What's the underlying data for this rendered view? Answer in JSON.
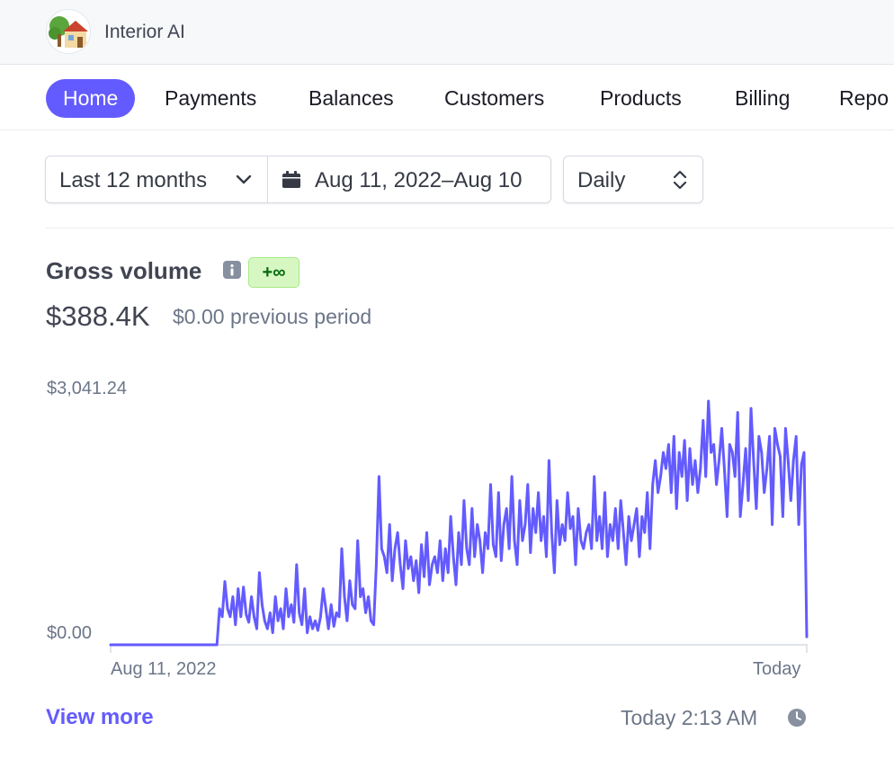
{
  "header": {
    "account_name": "Interior AI",
    "logo_icon": "house-with-garden-icon"
  },
  "nav": {
    "tabs": [
      {
        "label": "Home",
        "active": true
      },
      {
        "label": "Payments"
      },
      {
        "label": "Balances"
      },
      {
        "label": "Customers"
      },
      {
        "label": "Products"
      },
      {
        "label": "Billing"
      },
      {
        "label": "Repo"
      }
    ]
  },
  "filters": {
    "range_label": "Last 12 months",
    "date_range": "Aug 11, 2022–Aug 10",
    "interval": "Daily"
  },
  "metric": {
    "title": "Gross volume",
    "change_badge": "+∞",
    "value": "$388.4K",
    "previous": "$0.00 previous period"
  },
  "chart_data": {
    "type": "line",
    "y_max_label": "$3,041.24",
    "y_min_label": "$0.00",
    "x_start_label": "Aug 11, 2022",
    "x_end_label": "Today",
    "ylim": [
      0,
      3041.24
    ],
    "grid": false,
    "colors": {
      "line": "#635bff",
      "baseline": "#d5dbe1"
    },
    "series": [
      {
        "values": [
          0,
          0,
          0,
          0,
          0,
          0,
          0,
          0,
          0,
          0,
          0,
          0,
          0,
          0,
          0,
          0,
          0,
          0,
          0,
          0,
          0,
          0,
          0,
          0,
          0,
          0,
          0,
          0,
          0,
          0,
          0,
          0,
          0,
          0,
          0,
          0,
          0,
          0,
          0,
          0,
          0,
          450,
          350,
          790,
          450,
          350,
          600,
          250,
          700,
          350,
          720,
          380,
          280,
          600,
          350,
          200,
          900,
          500,
          300,
          200,
          400,
          150,
          600,
          300,
          450,
          200,
          700,
          350,
          500,
          280,
          1000,
          400,
          250,
          700,
          150,
          350,
          200,
          300,
          180,
          350,
          700,
          450,
          200,
          500,
          230,
          400,
          350,
          1200,
          600,
          300,
          800,
          500,
          450,
          1300,
          600,
          700,
          400,
          600,
          300,
          250,
          1000,
          2100,
          1200,
          1100,
          900,
          1500,
          800,
          1200,
          1400,
          1000,
          700,
          1300,
          950,
          1100,
          800,
          1050,
          650,
          1250,
          850,
          1400,
          750,
          1000,
          1100,
          900,
          1300,
          800,
          1200,
          900,
          1600,
          1100,
          750,
          1400,
          1000,
          1800,
          1200,
          1000,
          1700,
          1100,
          1500,
          1300,
          900,
          1400,
          1200,
          2000,
          1250,
          1100,
          1900,
          1050,
          1500,
          1700,
          1200,
          2100,
          1300,
          1000,
          1800,
          1300,
          1500,
          2000,
          1150,
          1700,
          1400,
          1900,
          1300,
          1600,
          1100,
          2300,
          1400,
          900,
          1800,
          1250,
          1500,
          1300,
          1900,
          1450,
          1600,
          1000,
          1700,
          1300,
          1200,
          1400,
          1500,
          1200,
          2100,
          1300,
          1600,
          1200,
          1900,
          1100,
          1500,
          1300,
          1700,
          1200,
          1800,
          1400,
          1000,
          1600,
          1300,
          1500,
          1700,
          1100,
          1600,
          1400,
          1900,
          1200,
          2000,
          2300,
          1900,
          2100,
          2400,
          2200,
          2500,
          1900,
          2600,
          1700,
          2400,
          2100,
          2550,
          1800,
          2450,
          2000,
          2300,
          1900,
          2200,
          2800,
          2100,
          3041,
          2400,
          2500,
          2000,
          2300,
          2700,
          2200,
          1600,
          2500,
          2400,
          2100,
          2900,
          1600,
          2000,
          2450,
          1800,
          2950,
          2300,
          1700,
          2600,
          2400,
          1900,
          2200,
          2600,
          1500,
          2700,
          2500,
          2350,
          1600,
          2700,
          2300,
          1800,
          2300,
          2600,
          1500,
          2250,
          2400,
          100
        ]
      }
    ]
  },
  "footer": {
    "view_more_label": "View more",
    "updated_label": "Today 2:13 AM",
    "updated_icon": "clock-icon"
  }
}
